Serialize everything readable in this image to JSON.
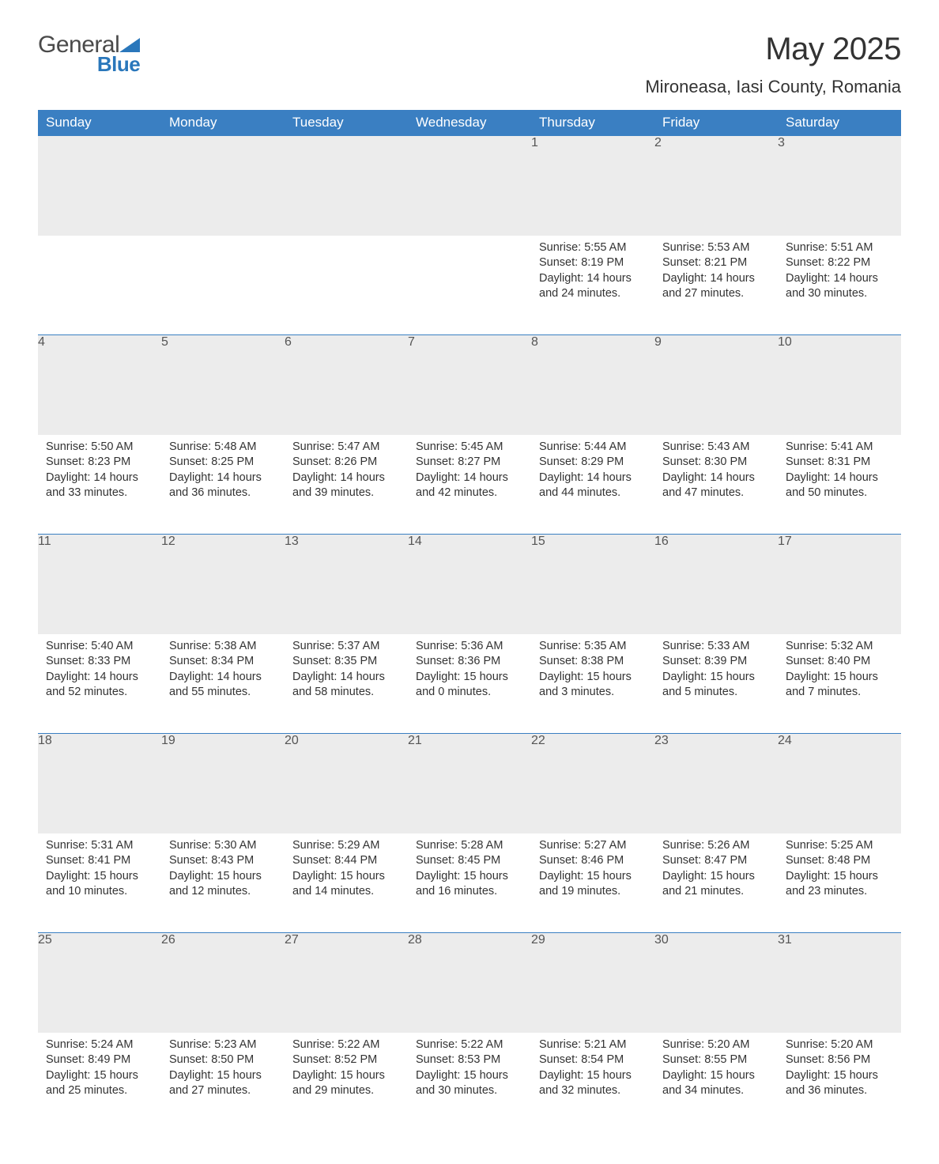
{
  "brand": {
    "general": "General",
    "blue": "Blue"
  },
  "colors": {
    "header_bg": "#3a7fc2",
    "header_text": "#ffffff",
    "daynum_bg": "#ececec",
    "daynum_text": "#555555",
    "body_text": "#333333",
    "row_border": "#3a7fc2",
    "logo_blue": "#2a77bb",
    "page_bg": "#ffffff"
  },
  "title": "May 2025",
  "location": "Mironeasa, Iasi County, Romania",
  "day_headers": [
    "Sunday",
    "Monday",
    "Tuesday",
    "Wednesday",
    "Thursday",
    "Friday",
    "Saturday"
  ],
  "labels": {
    "sunrise": "Sunrise:",
    "sunset": "Sunset:",
    "daylight": "Daylight:"
  },
  "weeks": [
    [
      null,
      null,
      null,
      null,
      {
        "day": "1",
        "sunrise": "5:55 AM",
        "sunset": "8:19 PM",
        "daylight": "14 hours and 24 minutes."
      },
      {
        "day": "2",
        "sunrise": "5:53 AM",
        "sunset": "8:21 PM",
        "daylight": "14 hours and 27 minutes."
      },
      {
        "day": "3",
        "sunrise": "5:51 AM",
        "sunset": "8:22 PM",
        "daylight": "14 hours and 30 minutes."
      }
    ],
    [
      {
        "day": "4",
        "sunrise": "5:50 AM",
        "sunset": "8:23 PM",
        "daylight": "14 hours and 33 minutes."
      },
      {
        "day": "5",
        "sunrise": "5:48 AM",
        "sunset": "8:25 PM",
        "daylight": "14 hours and 36 minutes."
      },
      {
        "day": "6",
        "sunrise": "5:47 AM",
        "sunset": "8:26 PM",
        "daylight": "14 hours and 39 minutes."
      },
      {
        "day": "7",
        "sunrise": "5:45 AM",
        "sunset": "8:27 PM",
        "daylight": "14 hours and 42 minutes."
      },
      {
        "day": "8",
        "sunrise": "5:44 AM",
        "sunset": "8:29 PM",
        "daylight": "14 hours and 44 minutes."
      },
      {
        "day": "9",
        "sunrise": "5:43 AM",
        "sunset": "8:30 PM",
        "daylight": "14 hours and 47 minutes."
      },
      {
        "day": "10",
        "sunrise": "5:41 AM",
        "sunset": "8:31 PM",
        "daylight": "14 hours and 50 minutes."
      }
    ],
    [
      {
        "day": "11",
        "sunrise": "5:40 AM",
        "sunset": "8:33 PM",
        "daylight": "14 hours and 52 minutes."
      },
      {
        "day": "12",
        "sunrise": "5:38 AM",
        "sunset": "8:34 PM",
        "daylight": "14 hours and 55 minutes."
      },
      {
        "day": "13",
        "sunrise": "5:37 AM",
        "sunset": "8:35 PM",
        "daylight": "14 hours and 58 minutes."
      },
      {
        "day": "14",
        "sunrise": "5:36 AM",
        "sunset": "8:36 PM",
        "daylight": "15 hours and 0 minutes."
      },
      {
        "day": "15",
        "sunrise": "5:35 AM",
        "sunset": "8:38 PM",
        "daylight": "15 hours and 3 minutes."
      },
      {
        "day": "16",
        "sunrise": "5:33 AM",
        "sunset": "8:39 PM",
        "daylight": "15 hours and 5 minutes."
      },
      {
        "day": "17",
        "sunrise": "5:32 AM",
        "sunset": "8:40 PM",
        "daylight": "15 hours and 7 minutes."
      }
    ],
    [
      {
        "day": "18",
        "sunrise": "5:31 AM",
        "sunset": "8:41 PM",
        "daylight": "15 hours and 10 minutes."
      },
      {
        "day": "19",
        "sunrise": "5:30 AM",
        "sunset": "8:43 PM",
        "daylight": "15 hours and 12 minutes."
      },
      {
        "day": "20",
        "sunrise": "5:29 AM",
        "sunset": "8:44 PM",
        "daylight": "15 hours and 14 minutes."
      },
      {
        "day": "21",
        "sunrise": "5:28 AM",
        "sunset": "8:45 PM",
        "daylight": "15 hours and 16 minutes."
      },
      {
        "day": "22",
        "sunrise": "5:27 AM",
        "sunset": "8:46 PM",
        "daylight": "15 hours and 19 minutes."
      },
      {
        "day": "23",
        "sunrise": "5:26 AM",
        "sunset": "8:47 PM",
        "daylight": "15 hours and 21 minutes."
      },
      {
        "day": "24",
        "sunrise": "5:25 AM",
        "sunset": "8:48 PM",
        "daylight": "15 hours and 23 minutes."
      }
    ],
    [
      {
        "day": "25",
        "sunrise": "5:24 AM",
        "sunset": "8:49 PM",
        "daylight": "15 hours and 25 minutes."
      },
      {
        "day": "26",
        "sunrise": "5:23 AM",
        "sunset": "8:50 PM",
        "daylight": "15 hours and 27 minutes."
      },
      {
        "day": "27",
        "sunrise": "5:22 AM",
        "sunset": "8:52 PM",
        "daylight": "15 hours and 29 minutes."
      },
      {
        "day": "28",
        "sunrise": "5:22 AM",
        "sunset": "8:53 PM",
        "daylight": "15 hours and 30 minutes."
      },
      {
        "day": "29",
        "sunrise": "5:21 AM",
        "sunset": "8:54 PM",
        "daylight": "15 hours and 32 minutes."
      },
      {
        "day": "30",
        "sunrise": "5:20 AM",
        "sunset": "8:55 PM",
        "daylight": "15 hours and 34 minutes."
      },
      {
        "day": "31",
        "sunrise": "5:20 AM",
        "sunset": "8:56 PM",
        "daylight": "15 hours and 36 minutes."
      }
    ]
  ],
  "layout": {
    "type": "calendar-table",
    "columns": 7,
    "rows": 5,
    "header_fontsize": 17,
    "daynum_fontsize": 16,
    "body_fontsize": 14.5,
    "title_fontsize": 40,
    "location_fontsize": 22
  }
}
